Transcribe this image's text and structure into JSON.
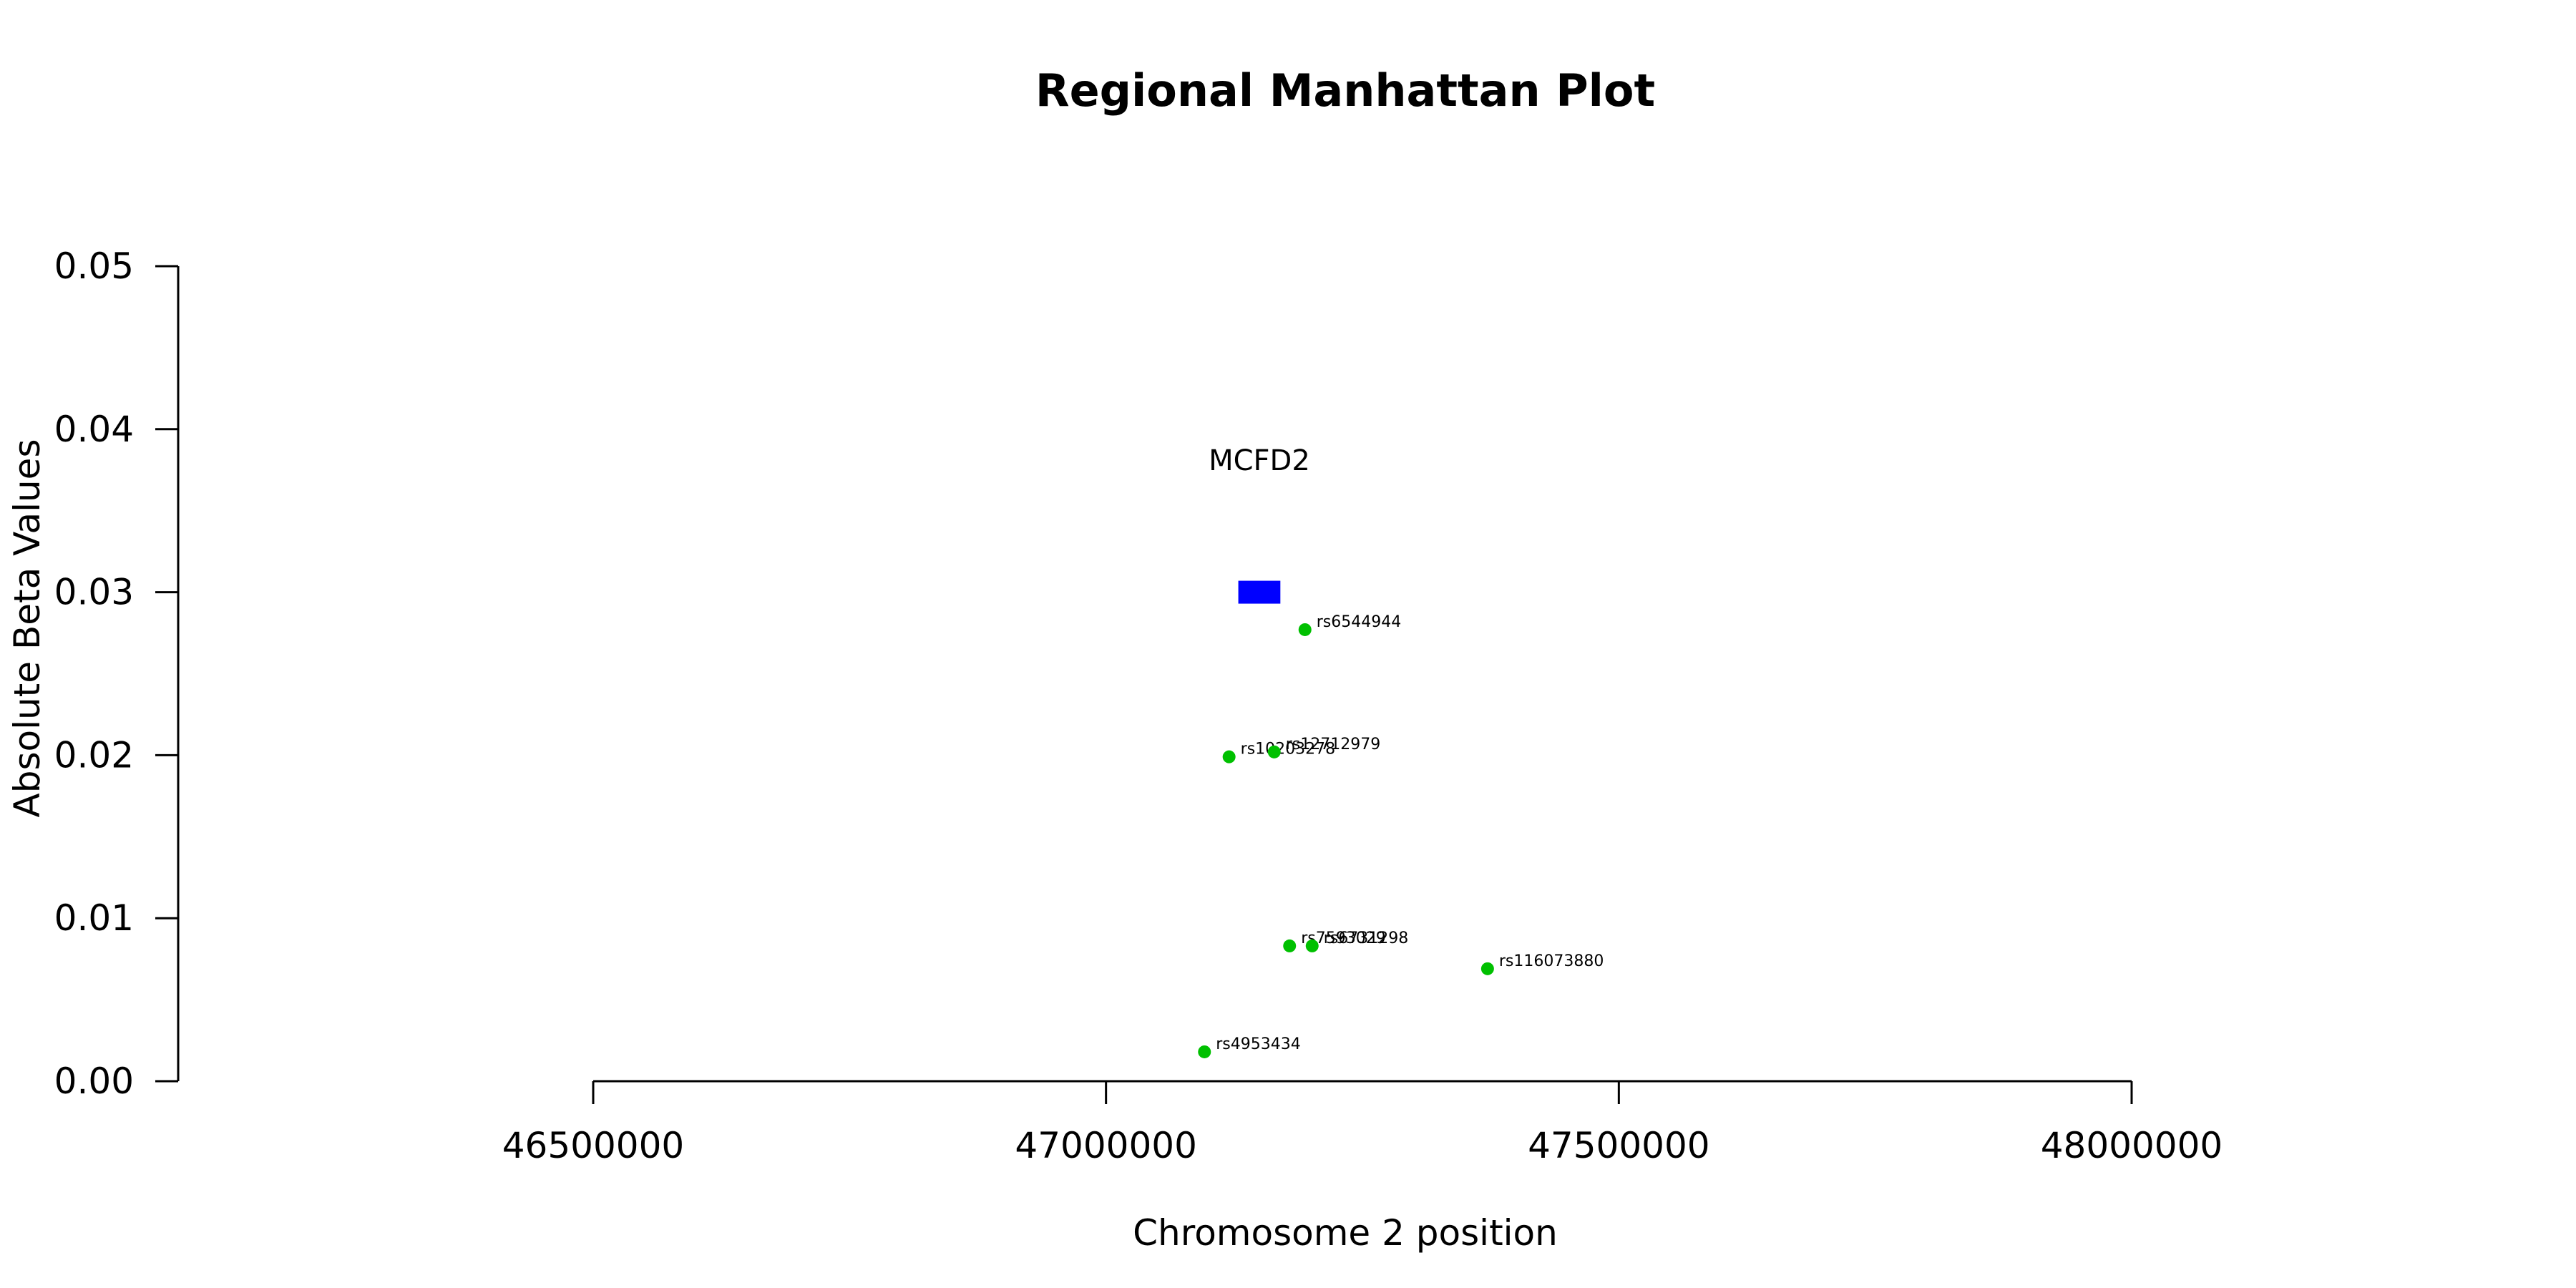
{
  "chart_data": {
    "type": "scatter",
    "title": "Regional Manhattan Plot",
    "xlabel": "Chromosome 2 position",
    "ylabel": "Absolute Beta Values",
    "xlim": [
      46500000,
      48000000
    ],
    "ylim": [
      0,
      0.05
    ],
    "x_ticks": [
      46500000,
      47000000,
      47500000,
      48000000
    ],
    "y_ticks": [
      "0.00",
      "0.01",
      "0.02",
      "0.03",
      "0.04",
      "0.05"
    ],
    "y_tick_values": [
      0,
      0.01,
      0.02,
      0.03,
      0.04,
      0.05
    ],
    "grid": false,
    "point_color": "#00c000",
    "points": [
      {
        "label": "rs6544944",
        "x": 47194000,
        "y": 0.0277
      },
      {
        "label": "rs10203278",
        "x": 47120000,
        "y": 0.0199
      },
      {
        "label": "rs12712979",
        "x": 47164000,
        "y": 0.0202
      },
      {
        "label": "rs7593029",
        "x": 47179000,
        "y": 0.0083
      },
      {
        "label": "rs6731298",
        "x": 47201000,
        "y": 0.0083
      },
      {
        "label": "rs116073880",
        "x": 47372000,
        "y": 0.0069
      },
      {
        "label": "rs4953434",
        "x": 47096000,
        "y": 0.0018
      }
    ],
    "genes": [
      {
        "name": "MCFD2",
        "start": 47129000,
        "end": 47170000,
        "y": 0.03,
        "color": "#0000ff"
      }
    ]
  }
}
